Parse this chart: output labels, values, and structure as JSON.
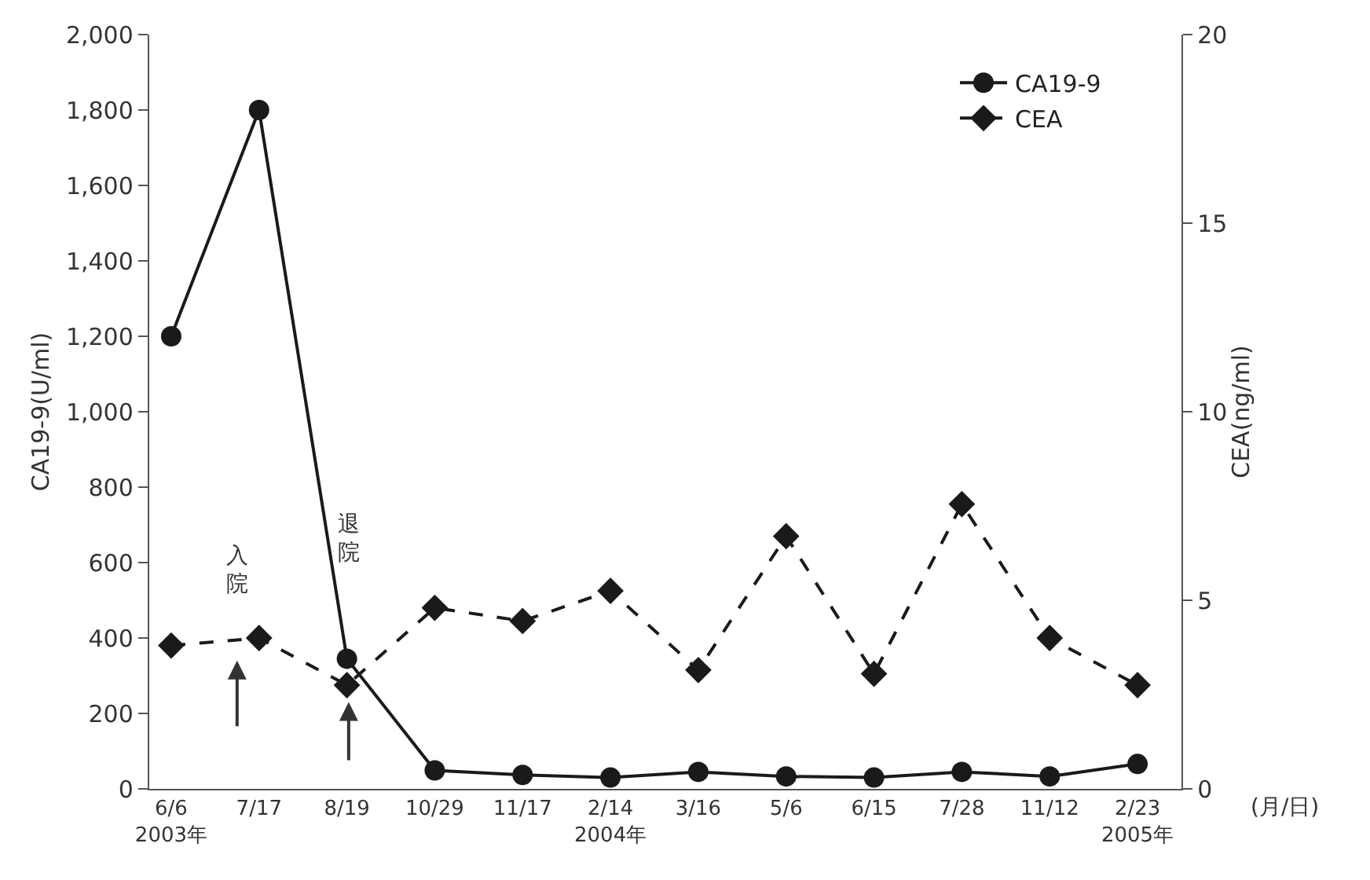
{
  "chart_data": {
    "type": "line",
    "categories": [
      "6/6\n2003年",
      "7/17",
      "8/19",
      "10/29",
      "11/17",
      "2/14\n2004年",
      "3/16",
      "5/6",
      "6/15",
      "7/28",
      "11/12",
      "2/23\n2005年"
    ],
    "series": [
      {
        "name": "CA19-9",
        "color": "#1a1a1a",
        "marker": "circle",
        "line_style": "solid",
        "values": [
          1200,
          1800,
          345,
          49,
          37,
          30,
          45,
          33,
          30,
          45,
          33,
          66
        ]
      },
      {
        "name": "CEA",
        "color": "#1a1a1a",
        "marker": "diamond",
        "line_style": "dashed",
        "axis": "y2",
        "values": [
          3.8,
          4.0,
          2.75,
          4.8,
          4.45,
          5.25,
          3.15,
          6.7,
          3.05,
          7.55,
          4.0,
          2.75
        ]
      }
    ],
    "ylabel": "CA19-9(U/ml)",
    "y2label": "CEA(ng/ml)",
    "xlabel": "(月/日)",
    "ylim": [
      0,
      2000
    ],
    "yticks": [
      {
        "value": 0,
        "label": "0"
      },
      {
        "value": 200,
        "label": "200"
      },
      {
        "value": 400,
        "label": "400"
      },
      {
        "value": 600,
        "label": "600"
      },
      {
        "value": 800,
        "label": "800"
      },
      {
        "value": 1000,
        "label": "1,000"
      },
      {
        "value": 1200,
        "label": "1,200"
      },
      {
        "value": 1400,
        "label": "1,400"
      },
      {
        "value": 1600,
        "label": "1,600"
      },
      {
        "value": 1800,
        "label": "1,800"
      },
      {
        "value": 2000,
        "label": "2,000"
      }
    ],
    "y2lim": [
      0,
      20
    ],
    "y2ticks": [
      0,
      5,
      10,
      15,
      20
    ],
    "annotations": [
      "入院",
      "退院"
    ],
    "legend": "top right"
  }
}
